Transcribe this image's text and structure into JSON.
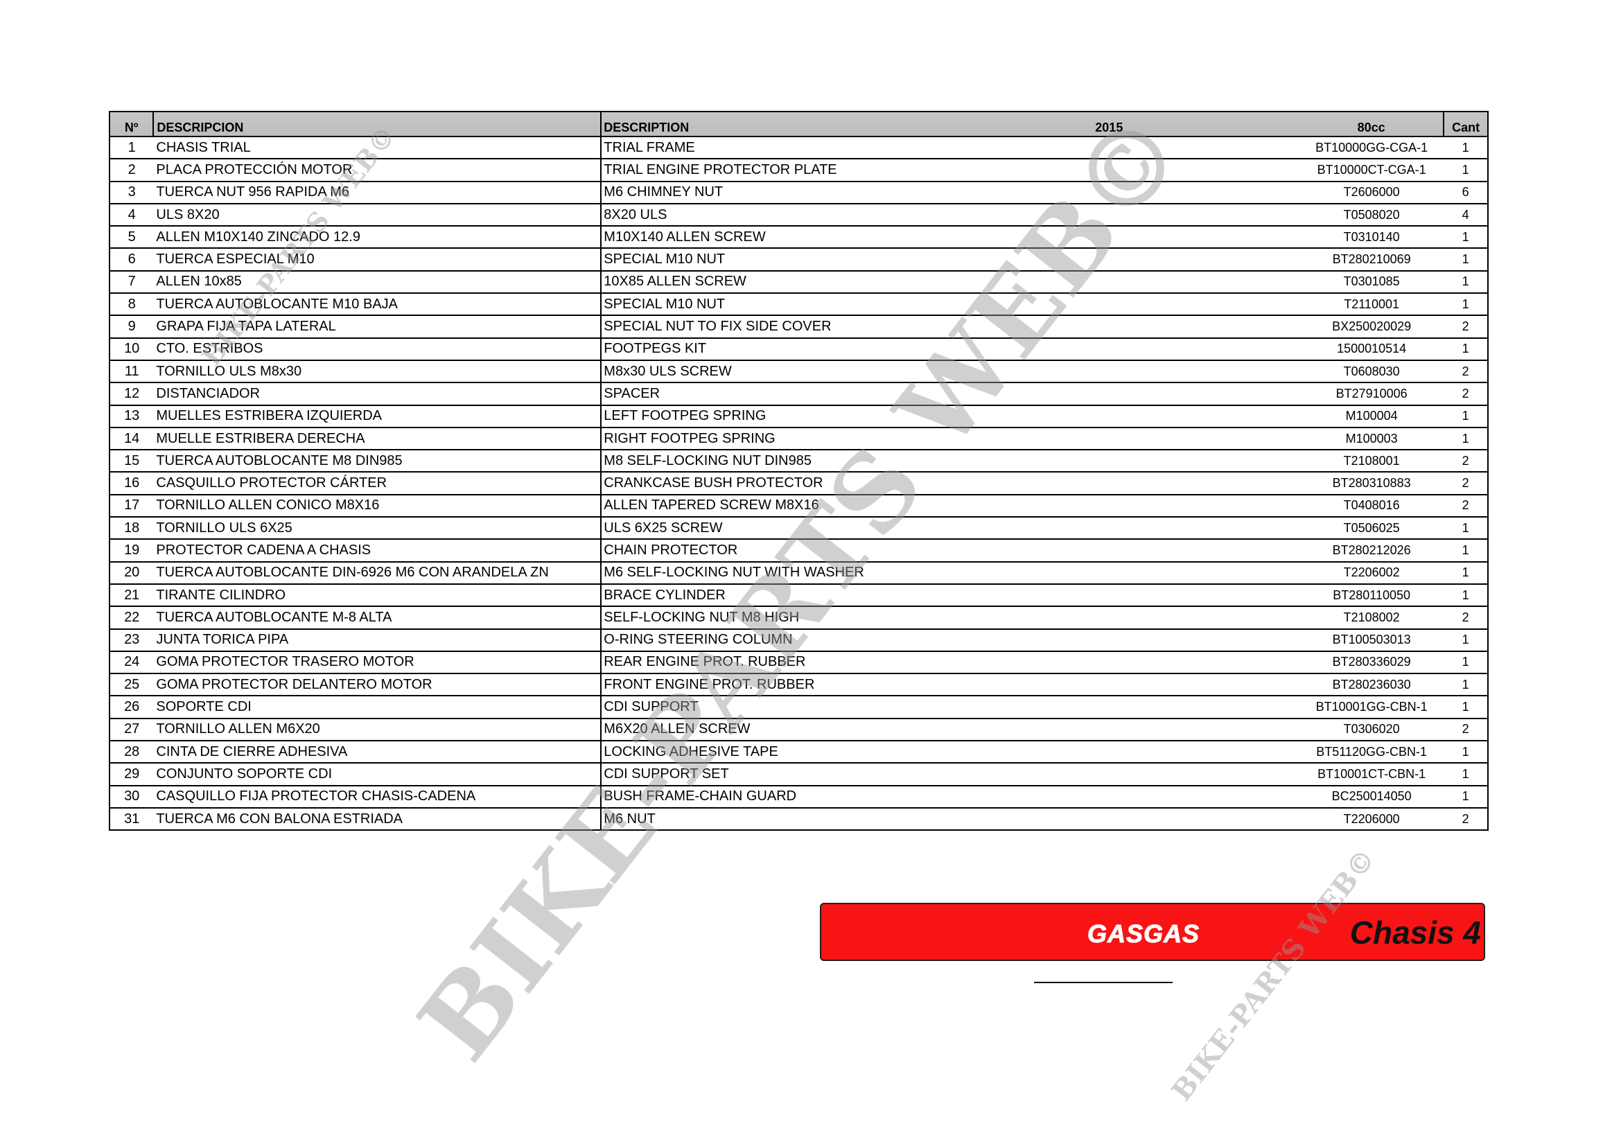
{
  "table": {
    "headers": {
      "no": "Nº",
      "es": "DESCRIPCION",
      "en": "DESCRIPTION",
      "year": "2015",
      "code": "80cc",
      "cant": "Cant"
    },
    "rows": [
      {
        "no": "1",
        "es": "CHASIS TRIAL",
        "en": "TRIAL FRAME",
        "code": "BT10000GG-CGA-1",
        "cant": "1"
      },
      {
        "no": "2",
        "es": "PLACA PROTECCIÓN MOTOR",
        "en": "TRIAL ENGINE PROTECTOR PLATE",
        "code": "BT10000CT-CGA-1",
        "cant": "1"
      },
      {
        "no": "3",
        "es": "TUERCA NUT 956 RAPIDA M6",
        "en": "M6 CHIMNEY NUT",
        "code": "T2606000",
        "cant": "6"
      },
      {
        "no": "4",
        "es": "ULS 8X20",
        "en": "8X20 ULS",
        "code": "T0508020",
        "cant": "4"
      },
      {
        "no": "5",
        "es": "ALLEN M10X140 ZINCADO 12.9",
        "en": "M10X140 ALLEN SCREW",
        "code": "T0310140",
        "cant": "1"
      },
      {
        "no": "6",
        "es": "TUERCA ESPECIAL M10",
        "en": "SPECIAL M10 NUT",
        "code": "BT280210069",
        "cant": "1"
      },
      {
        "no": "7",
        "es": "ALLEN 10x85",
        "en": "10X85 ALLEN SCREW",
        "code": "T0301085",
        "cant": "1"
      },
      {
        "no": "8",
        "es": "TUERCA AUTOBLOCANTE M10 BAJA",
        "en": "SPECIAL M10 NUT",
        "code": "T2110001",
        "cant": "1"
      },
      {
        "no": "9",
        "es": "GRAPA FIJA TAPA LATERAL",
        "en": "SPECIAL NUT TO FIX SIDE COVER",
        "code": "BX250020029",
        "cant": "2"
      },
      {
        "no": "10",
        "es": "CTO. ESTRIBOS",
        "en": "FOOTPEGS KIT",
        "code": "1500010514",
        "cant": "1"
      },
      {
        "no": "11",
        "es": "TORNILLO ULS M8x30",
        "en": "M8x30 ULS SCREW",
        "code": "T0608030",
        "cant": "2"
      },
      {
        "no": "12",
        "es": "DISTANCIADOR",
        "en": "SPACER",
        "code": "BT27910006",
        "cant": "2"
      },
      {
        "no": "13",
        "es": "MUELLES ESTRIBERA IZQUIERDA",
        "en": "LEFT FOOTPEG SPRING",
        "code": "M100004",
        "cant": "1"
      },
      {
        "no": "14",
        "es": "MUELLE ESTRIBERA DERECHA",
        "en": "RIGHT FOOTPEG SPRING",
        "code": "M100003",
        "cant": "1"
      },
      {
        "no": "15",
        "es": "TUERCA AUTOBLOCANTE M8  DIN985",
        "en": "M8 SELF-LOCKING NUT DIN985",
        "code": "T2108001",
        "cant": "2"
      },
      {
        "no": "16",
        "es": "CASQUILLO PROTECTOR CÁRTER",
        "en": "CRANKCASE BUSH PROTECTOR",
        "code": "BT280310883",
        "cant": "2"
      },
      {
        "no": "17",
        "es": "TORNILLO ALLEN CONICO M8X16",
        "en": "ALLEN TAPERED SCREW M8X16",
        "code": "T0408016",
        "cant": "2"
      },
      {
        "no": "18",
        "es": "TORNILLO ULS 6X25",
        "en": "ULS 6X25 SCREW",
        "code": "T0506025",
        "cant": "1"
      },
      {
        "no": "19",
        "es": "PROTECTOR CADENA A CHASIS",
        "en": "CHAIN PROTECTOR",
        "code": "BT280212026",
        "cant": "1"
      },
      {
        "no": "20",
        "es": "TUERCA AUTOBLOCANTE DIN-6926 M6 CON ARANDELA ZN",
        "en": "M6 SELF-LOCKING NUT WITH WASHER",
        "code": "T2206002",
        "cant": "1"
      },
      {
        "no": "21",
        "es": "TIRANTE CILINDRO",
        "en": "BRACE CYLINDER",
        "code": "BT280110050",
        "cant": "1"
      },
      {
        "no": "22",
        "es": "TUERCA AUTOBLOCANTE M-8 ALTA",
        "en": "SELF-LOCKING NUT M8 HIGH",
        "code": "T2108002",
        "cant": "2"
      },
      {
        "no": "23",
        "es": "JUNTA TORICA PIPA",
        "en": "O-RING STEERING COLUMN",
        "code": "BT100503013",
        "cant": "1"
      },
      {
        "no": "24",
        "es": "GOMA PROTECTOR TRASERO MOTOR",
        "en": "REAR ENGINE PROT. RUBBER",
        "code": "BT280336029",
        "cant": "1"
      },
      {
        "no": "25",
        "es": "GOMA PROTECTOR DELANTERO MOTOR",
        "en": "FRONT ENGINE PROT. RUBBER",
        "code": "BT280236030",
        "cant": "1"
      },
      {
        "no": "26",
        "es": "SOPORTE CDI",
        "en": "CDI SUPPORT",
        "code": "BT10001GG-CBN-1",
        "cant": "1"
      },
      {
        "no": "27",
        "es": "TORNILLO ALLEN M6X20",
        "en": "M6X20 ALLEN SCREW",
        "code": "T0306020",
        "cant": "2"
      },
      {
        "no": "28",
        "es": "CINTA DE CIERRE ADHESIVA",
        "en": "LOCKING ADHESIVE TAPE",
        "code": "BT51120GG-CBN-1",
        "cant": "1"
      },
      {
        "no": "29",
        "es": "CONJUNTO SOPORTE CDI",
        "en": "CDI SUPPORT SET",
        "code": "BT10001CT-CBN-1",
        "cant": "1"
      },
      {
        "no": "30",
        "es": "CASQUILLO FIJA PROTECTOR CHASIS-CADENA",
        "en": "BUSH  FRAME-CHAIN GUARD",
        "code": "BC250014050",
        "cant": "1"
      },
      {
        "no": "31",
        "es": "TUERCA M6 CON BALONA ESTRIADA",
        "en": "M6 NUT",
        "code": "T2206000",
        "cant": "2"
      }
    ]
  },
  "banner": {
    "brand": "GASGAS",
    "section": "Chasis 4",
    "color": "#f81414"
  },
  "watermark": "BIKE-PARTS WEB©"
}
